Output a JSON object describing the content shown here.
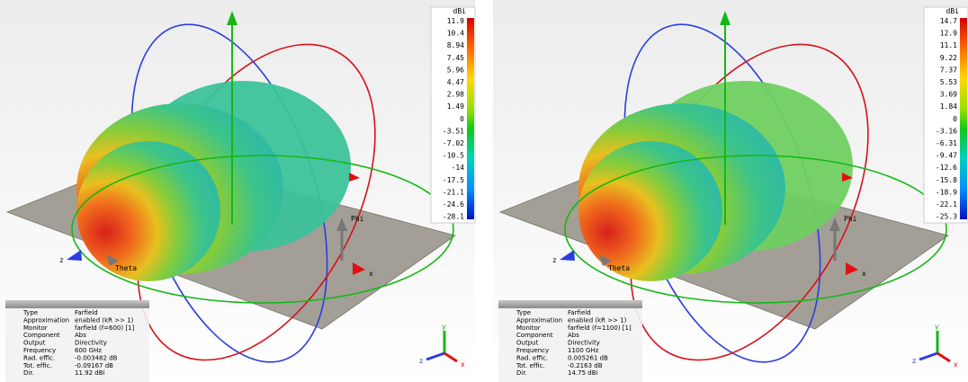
{
  "panels": [
    {
      "colorbar": {
        "unit": "dBi",
        "ticks": [
          "11.9",
          "10.4",
          "8.94",
          "7.45",
          "5.96",
          "4.47",
          "2.98",
          "1.49",
          "0",
          "-3.51",
          "-7.02",
          "-10.5",
          "-14",
          "-17.5",
          "-21.1",
          "-24.6",
          "-28.1"
        ]
      },
      "axes": {
        "phi": "Phi",
        "theta": "Theta",
        "x": "x",
        "z": "z"
      },
      "triad": {
        "x": "x",
        "y": "y",
        "z": "z"
      },
      "info": [
        [
          "Type",
          "Farfield"
        ],
        [
          "Approximation",
          "enabled (kR >> 1)"
        ],
        [
          "Monitor",
          "farfield (f=600) [1]"
        ],
        [
          "Component",
          "Abs"
        ],
        [
          "Output",
          "Directivity"
        ],
        [
          "Frequency",
          "600 GHz"
        ],
        [
          "Rad. effic.",
          "-0.003482 dB"
        ],
        [
          "Tot. effic.",
          "-0.09167 dB"
        ],
        [
          "Dir.",
          "11.92 dBi"
        ]
      ]
    },
    {
      "colorbar": {
        "unit": "dBi",
        "ticks": [
          "14.7",
          "12.9",
          "11.1",
          "9.22",
          "7.37",
          "5.53",
          "3.69",
          "1.84",
          "0",
          "-3.16",
          "-6.31",
          "-9.47",
          "-12.6",
          "-15.8",
          "-18.9",
          "-22.1",
          "-25.3"
        ]
      },
      "axes": {
        "phi": "Phi",
        "theta": "Theta",
        "x": "x",
        "z": "z"
      },
      "triad": {
        "x": "x",
        "y": "y",
        "z": "z"
      },
      "info": [
        [
          "Type",
          "Farfield"
        ],
        [
          "Approximation",
          "enabled (kR >> 1)"
        ],
        [
          "Monitor",
          "farfield (f=1100) [1]"
        ],
        [
          "Component",
          "Abs"
        ],
        [
          "Output",
          "Directivity"
        ],
        [
          "Frequency",
          "1100 GHz"
        ],
        [
          "Rad. effic.",
          "0.005261 dB"
        ],
        [
          "Tot. effic.",
          "-0.2163 dB"
        ],
        [
          "Dir.",
          "14.75 dBi"
        ]
      ]
    }
  ]
}
